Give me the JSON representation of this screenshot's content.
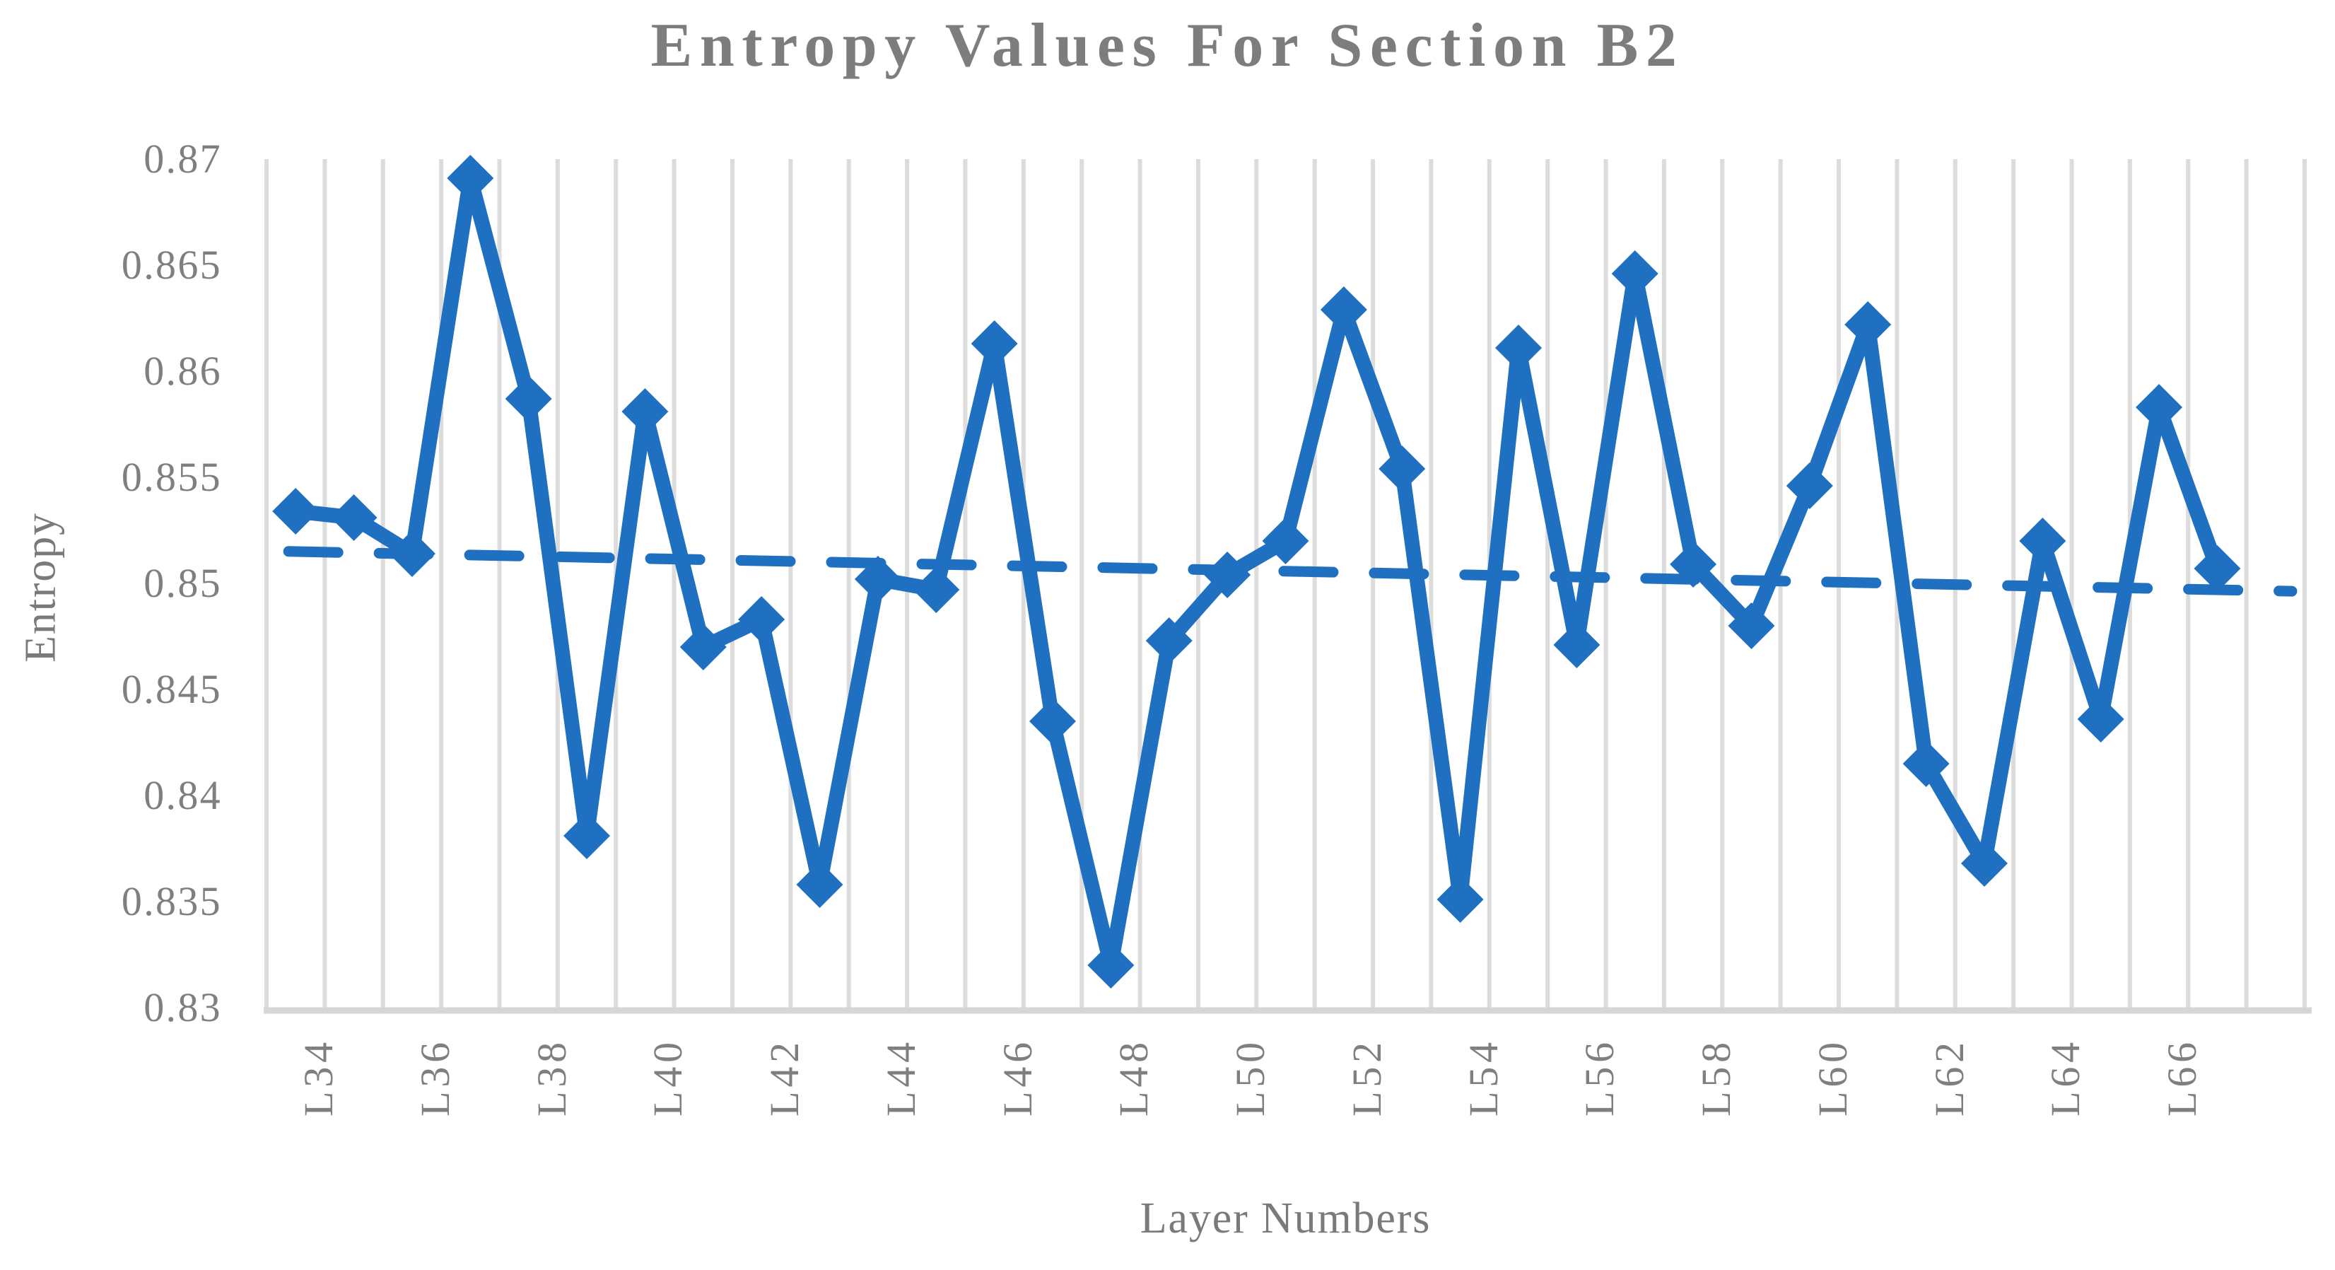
{
  "title": "Entropy Values For Section B2",
  "x_axis_title": "Layer Numbers",
  "y_axis_title": "Entropy",
  "colors": {
    "series": "#1F70C1",
    "trendline": "#1F70C1",
    "gridline": "#DCDCDC",
    "axis_line": "#D6D6D6",
    "tick_text": "#7F7F7F",
    "title_text": "#7D7D7D"
  },
  "chart_data": {
    "type": "line",
    "title": "Entropy Values For Section B2",
    "xlabel": "Layer Numbers",
    "ylabel": "Entropy",
    "categories": [
      "L34",
      "L35",
      "L36",
      "L37",
      "L38",
      "L39",
      "L40",
      "L41",
      "L42",
      "L43",
      "L44",
      "L45",
      "L46",
      "L47",
      "L48",
      "L49",
      "L50",
      "L51",
      "L52",
      "L53",
      "L54",
      "L55",
      "L56",
      "L57",
      "L58",
      "L59",
      "L60",
      "L61",
      "L62",
      "L63",
      "L64",
      "L65",
      "L66",
      "L67"
    ],
    "series": [
      {
        "name": "Entropy",
        "marker": "diamond",
        "values": [
          0.8534,
          0.8531,
          0.8514,
          0.8691,
          0.8587,
          0.8381,
          0.8581,
          0.847,
          0.8483,
          0.8358,
          0.8502,
          0.8497,
          0.8613,
          0.8435,
          0.832,
          0.8473,
          0.8504,
          0.852,
          0.8629,
          0.8554,
          0.8351,
          0.8611,
          0.8471,
          0.8646,
          0.8509,
          0.848,
          0.8546,
          0.8622,
          0.8415,
          0.8368,
          0.852,
          0.8436,
          0.8583,
          0.8507
        ]
      }
    ],
    "trendline": {
      "type": "linear",
      "style": "dashed",
      "start_value": 0.8515,
      "end_value": 0.8497
    },
    "ylim": [
      0.83,
      0.87
    ],
    "ytick_labels": [
      "0.87",
      "0.865",
      "0.86",
      "0.855",
      "0.85",
      "0.845",
      "0.84",
      "0.835",
      "0.83"
    ],
    "xtick_labels": [
      "L34",
      "L36",
      "L38",
      "L40",
      "L42",
      "L44",
      "L46",
      "L48",
      "L50",
      "L52",
      "L54",
      "L56",
      "L58",
      "L60",
      "L62",
      "L64",
      "L66"
    ],
    "xtick_step": 2,
    "grid": "vertical-only",
    "legend": "none",
    "empty_trailing_slots": 1
  }
}
